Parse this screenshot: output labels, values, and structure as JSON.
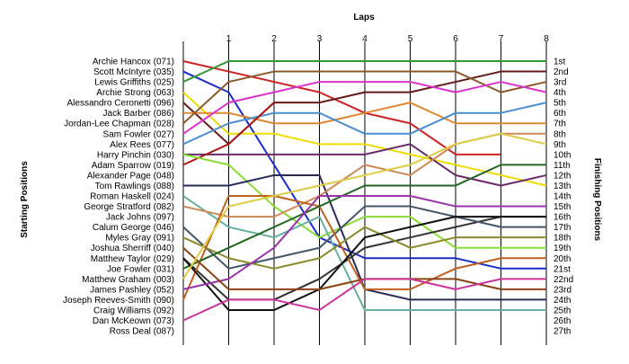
{
  "chart_data": {
    "type": "line",
    "title": "",
    "xlabel": "Laps",
    "ylabel_left": "Starting Positions",
    "ylabel_right": "Finishing Positions",
    "x": [
      0,
      1,
      2,
      3,
      4,
      5,
      6,
      7,
      8
    ],
    "x_tick_labels": [
      "1",
      "2",
      "3",
      "4",
      "5",
      "6",
      "7",
      "8"
    ],
    "y_range": [
      1,
      27
    ],
    "grid": "vertical lines at each lap",
    "legend": "none",
    "start_labels": [
      "Archie Hancox (071)",
      "Scott McIntyre (035)",
      "Lewis Griffiths (025)",
      "Archie Strong (063)",
      "Alessandro Ceronetti (096)",
      "Jack Barber (086)",
      "Jordan-Lee Chapman (028)",
      "Sam Fowler (027)",
      "Alex Rees (077)",
      "Harry Pinchin (030)",
      "Adam Sparrow (019)",
      "Alexander Page (048)",
      "Tom Rawlings (088)",
      "Roman Haskell (024)",
      "George Stratford (082)",
      "Jack Johns (097)",
      "Calum George (046)",
      "Myles Gray (091)",
      "Joshua Sherriff (040)",
      "Matthew Taylor (029)",
      "Joe Fowler (031)",
      "Matthew Graham (003)",
      "James Pashley (052)",
      "Joseph Reeves-Smith (090)",
      "Craig Williams (092)",
      "Dan McKeown (073)",
      "Ross Deal (087)"
    ],
    "finish_labels": [
      "1st",
      "2nd",
      "3rd",
      "4th",
      "5th",
      "6th",
      "7th",
      "8th",
      "9th",
      "10th",
      "11th",
      "12th",
      "13th",
      "14th",
      "15th",
      "16th",
      "17th",
      "18th",
      "19th",
      "20th",
      "21st",
      "22nd",
      "23rd",
      "24th",
      "25th",
      "26th",
      "27th"
    ],
    "series": [
      {
        "color": "#cc2222",
        "values": [
          1,
          2,
          3,
          4,
          6,
          7,
          10,
          10,
          null
        ]
      },
      {
        "color": "#1a2ccc",
        "values": [
          2,
          4,
          11,
          18,
          20,
          20,
          20,
          21,
          21
        ]
      },
      {
        "color": "#339933",
        "values": [
          3,
          1,
          1,
          1,
          1,
          1,
          1,
          1,
          1
        ]
      },
      {
        "color": "#eedd00",
        "values": [
          4,
          8,
          8,
          9,
          9,
          10,
          11,
          12,
          13
        ]
      },
      {
        "color": "#661a1a",
        "values": [
          5,
          9,
          5,
          5,
          4,
          4,
          3,
          2,
          2
        ]
      },
      {
        "color": "#dd8833",
        "values": [
          6,
          6,
          7,
          7,
          6,
          5,
          7,
          7,
          7
        ]
      },
      {
        "color": "#8b5a2b",
        "values": [
          7,
          3,
          2,
          2,
          2,
          2,
          2,
          4,
          3
        ]
      },
      {
        "color": "#dd33cc",
        "values": [
          8,
          5,
          4,
          3,
          3,
          3,
          4,
          3,
          4
        ]
      },
      {
        "color": "#4a8ecf",
        "values": [
          9,
          7,
          6,
          6,
          8,
          8,
          6,
          6,
          5
        ]
      },
      {
        "color": "#6b2a6b",
        "values": [
          10,
          10,
          10,
          10,
          10,
          9,
          12,
          13,
          12
        ]
      },
      {
        "color": "#aa1a1a",
        "values": [
          11,
          9,
          5,
          null,
          null,
          null,
          null,
          null,
          null
        ]
      },
      {
        "color": "#88dd33",
        "values": [
          10,
          11,
          15,
          18,
          16,
          16,
          19,
          19,
          19
        ]
      },
      {
        "color": "#2a2a5a",
        "values": [
          13,
          13,
          12,
          12,
          23,
          24,
          24,
          24,
          24
        ]
      },
      {
        "color": "#66b0a0",
        "values": [
          14,
          17,
          18,
          16,
          25,
          25,
          25,
          25,
          25
        ]
      },
      {
        "color": "#cc8855",
        "values": [
          15,
          16,
          16,
          14,
          11,
          12,
          9,
          8,
          8
        ]
      },
      {
        "color": "#333333",
        "values": [
          20,
          24,
          24,
          22,
          19,
          18,
          17,
          16,
          16
        ]
      },
      {
        "color": "#445566",
        "values": [
          17,
          21,
          20,
          19,
          15,
          15,
          16,
          17,
          17
        ]
      },
      {
        "color": "#8a8a2a",
        "values": [
          18,
          20,
          21,
          20,
          17,
          19,
          18,
          18,
          18
        ]
      },
      {
        "color": "#c06020",
        "values": [
          24,
          14,
          14,
          15,
          23,
          23,
          21,
          20,
          20
        ]
      },
      {
        "color": "#226622",
        "values": [
          21,
          19,
          17,
          15,
          13,
          13,
          13,
          11,
          11
        ]
      },
      {
        "color": "#111111",
        "values": [
          20,
          25,
          25,
          23,
          18,
          17,
          16,
          16,
          16
        ]
      },
      {
        "color": "#9933aa",
        "values": [
          23,
          22,
          19,
          14,
          14,
          14,
          15,
          15,
          15
        ]
      },
      {
        "color": "#8b4513",
        "values": [
          19,
          23,
          23,
          23,
          22,
          22,
          22,
          23,
          23
        ]
      },
      {
        "color": "#cc3399",
        "values": [
          26,
          24,
          24,
          25,
          22,
          22,
          23,
          22,
          22
        ]
      },
      {
        "color": "#ddcc44",
        "values": [
          22,
          15,
          14,
          13,
          12,
          11,
          9,
          8,
          9
        ]
      }
    ]
  }
}
